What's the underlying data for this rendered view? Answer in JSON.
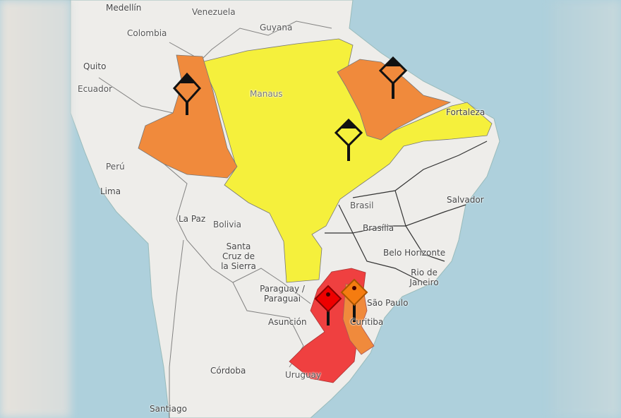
{
  "map": {
    "colors": {
      "ocean": "#aed0dc",
      "land": "#eeedea",
      "border": "#333333",
      "yellow_alert": "#f5f03c",
      "orange_alert": "#f08a3c",
      "red_alert": "#ef4040"
    },
    "labels": {
      "medellin": "Medellín",
      "venezuela": "Venezuela",
      "guyana": "Guyana",
      "colombia": "Colombia",
      "quito": "Quito",
      "ecuador": "Ecuador",
      "manaus": "Manaus",
      "fortaleza": "Fortaleza",
      "peru": "Perú",
      "lima": "Lima",
      "brasil": "Brasil",
      "brasilia": "Brasília",
      "salvador": "Salvador",
      "la_paz": "La Paz",
      "bolivia": "Bolivia",
      "santa_cruz": "Santa Cruz de la Sierra",
      "belo_horizonte": "Belo Horizonte",
      "rio": "Rio de Janeiro",
      "paraguay": "Paraguay / Paraguai",
      "asuncion": "Asunción",
      "sao_paulo": "São Paulo",
      "curitiba": "Curitiba",
      "cordoba": "Córdoba",
      "uruguay": "Uruguay",
      "santiago": "Santiago"
    },
    "alerts": [
      {
        "level": "orange",
        "region": "west",
        "icon": "warning-sign-icon"
      },
      {
        "level": "orange",
        "region": "northeast",
        "icon": "warning-sign-icon"
      },
      {
        "level": "yellow",
        "region": "central-north",
        "icon": "warning-sign-icon"
      },
      {
        "level": "red",
        "region": "south",
        "icon": "warning-sign-icon"
      },
      {
        "level": "orange",
        "region": "south",
        "icon": "warning-sign-icon"
      }
    ]
  }
}
